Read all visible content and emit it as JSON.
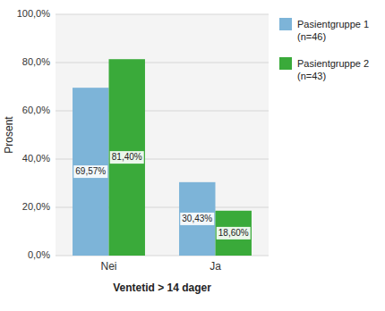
{
  "chart_data": {
    "type": "bar",
    "xlabel": "Ventetid > 14 dager",
    "ylabel": "Prosent",
    "categories": [
      "Nei",
      "Ja"
    ],
    "series": [
      {
        "name": "Pasientgruppe 1\n(n=46)",
        "color": "#7db4d8",
        "values": [
          69.57,
          30.43
        ],
        "value_labels": [
          "69,57%",
          "30,43%"
        ]
      },
      {
        "name": "Pasientgruppe 2\n(n=43)",
        "color": "#3aaa3a",
        "values": [
          81.4,
          18.6
        ],
        "value_labels": [
          "81,40%",
          "18,60%"
        ]
      }
    ],
    "ylim": [
      0,
      100
    ],
    "yticks": [
      {
        "value": 0,
        "label": "0,0%"
      },
      {
        "value": 20,
        "label": "20,0%"
      },
      {
        "value": 40,
        "label": "40,0%"
      },
      {
        "value": 60,
        "label": "60,0%"
      },
      {
        "value": 80,
        "label": "80,0%"
      },
      {
        "value": 100,
        "label": "100,0%"
      }
    ],
    "grid": true,
    "legend": "right",
    "data_labels": true
  }
}
